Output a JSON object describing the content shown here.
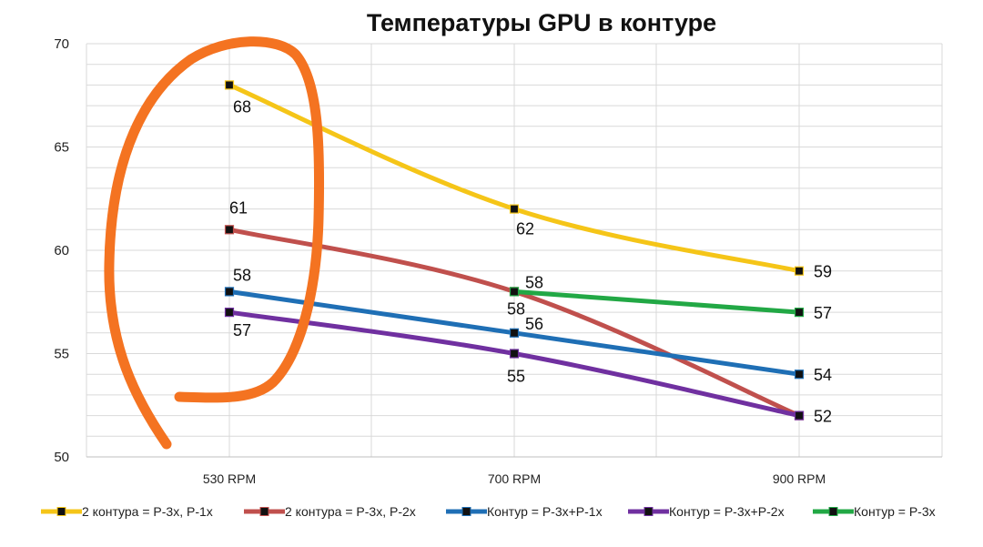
{
  "chart_data": {
    "type": "line",
    "title": "Температуры GPU в контуре",
    "categories": [
      "530 RPM",
      "700 RPM",
      "900 RPM"
    ],
    "ylim": [
      50,
      70
    ],
    "yticks": [
      50,
      55,
      60,
      65,
      70
    ],
    "grid": true,
    "legend_position": "bottom",
    "series": [
      {
        "name": "2 контура = Р-3х, Р-1х",
        "color": "#f5c518",
        "values": [
          68,
          62,
          59
        ]
      },
      {
        "name": "2 контура = Р-3х, Р-2х",
        "color": "#c0504d",
        "values": [
          61,
          58,
          52
        ]
      },
      {
        "name": "Контур = Р-3х+Р-1х",
        "color": "#1f6fb5",
        "values": [
          58,
          56,
          54
        ]
      },
      {
        "name": "Контур = Р-3х+Р-2х",
        "color": "#7030a0",
        "values": [
          57,
          55,
          52
        ]
      },
      {
        "name": "Контур = Р-3х",
        "color": "#22a845",
        "values": [
          null,
          58,
          57
        ]
      }
    ]
  }
}
